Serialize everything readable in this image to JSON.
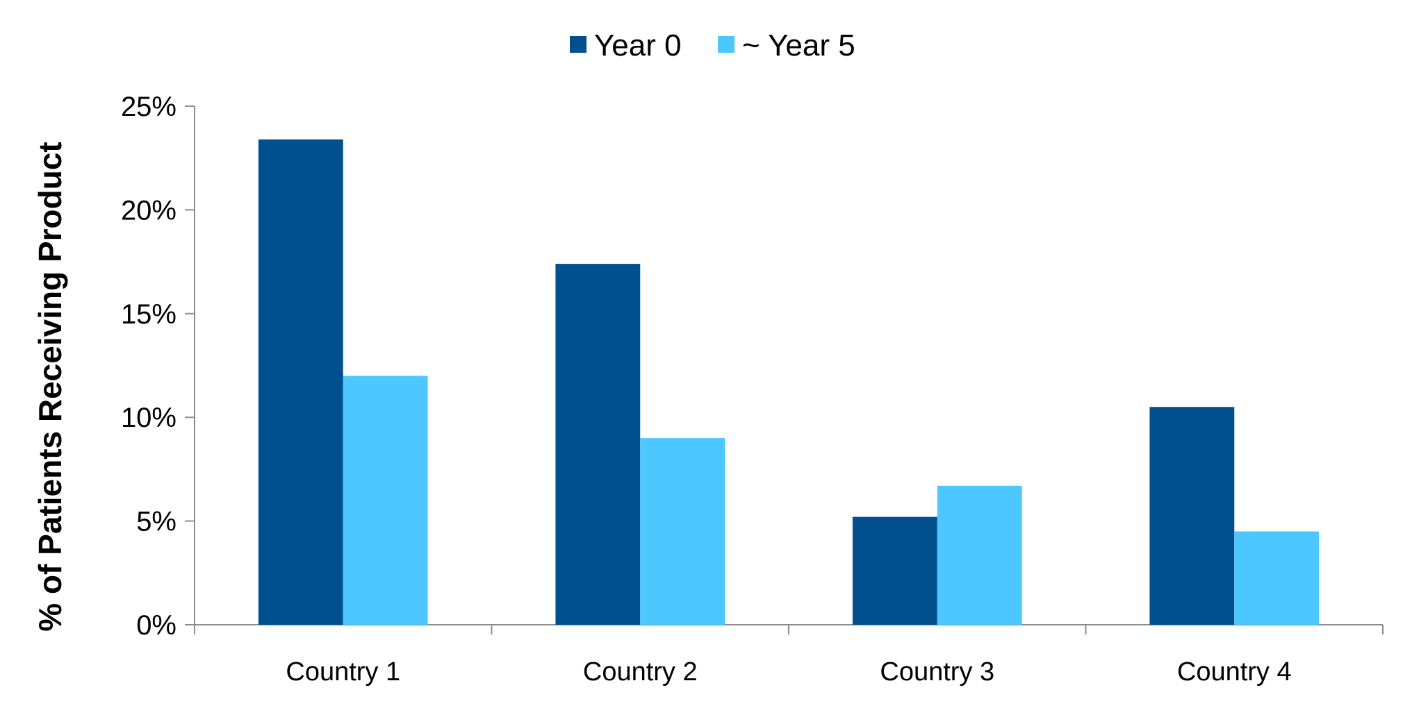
{
  "chart_data": {
    "type": "bar",
    "title": "",
    "xlabel": "",
    "ylabel": "% of Patients Receiving Product",
    "categories": [
      "Country 1",
      "Country 2",
      "Country 3",
      "Country 4"
    ],
    "series": [
      {
        "name": "Year 0",
        "color": "#00508F",
        "values": [
          23.4,
          17.4,
          5.2,
          10.5
        ]
      },
      {
        "name": "~ Year 5",
        "color": "#4DC7FF",
        "values": [
          12.0,
          9.0,
          6.7,
          4.5
        ]
      }
    ],
    "ylim": [
      0,
      25
    ],
    "yticks": [
      0,
      5,
      10,
      15,
      20,
      25
    ],
    "ytick_labels": [
      "0%",
      "5%",
      "10%",
      "15%",
      "20%",
      "25%"
    ],
    "legend_position": "top-center",
    "grid": false
  }
}
